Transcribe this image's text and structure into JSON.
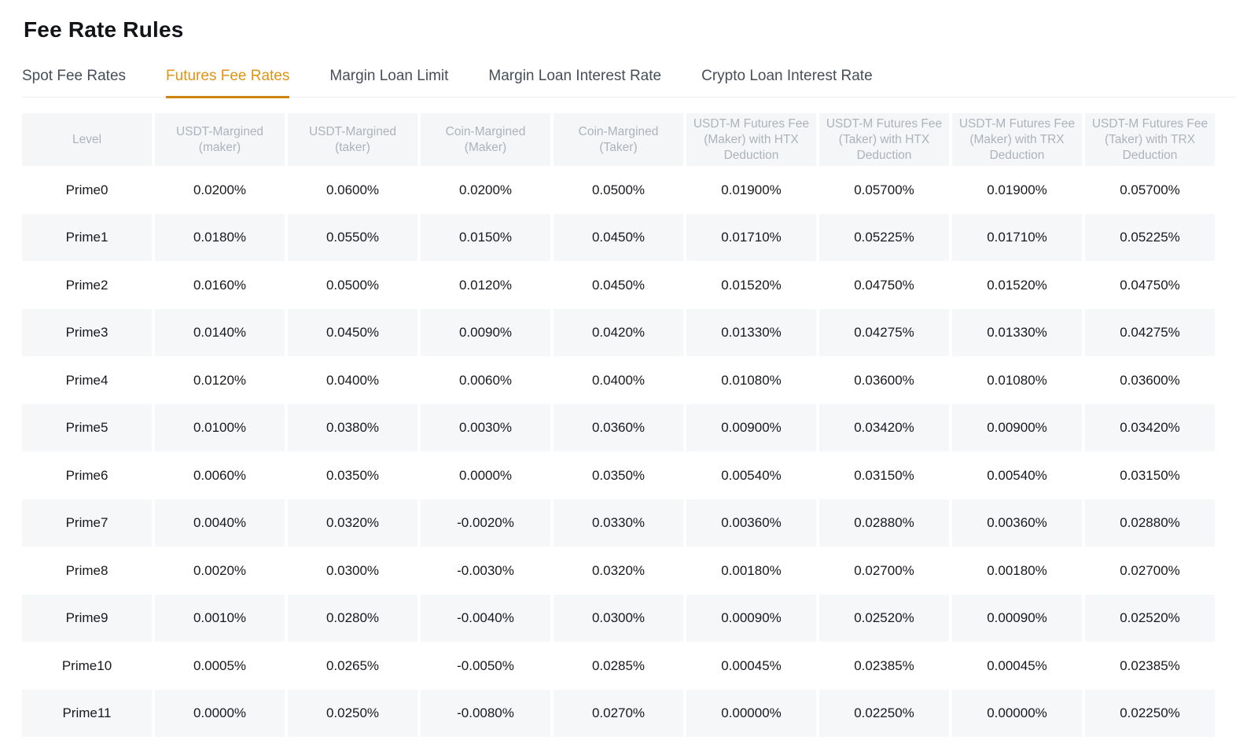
{
  "page": {
    "title": "Fee Rate Rules"
  },
  "colors": {
    "accent_text": "#dd9417",
    "accent_underline": "#d2830e",
    "header_bg": "#f5f6f8",
    "stripe_bg": "#f6f7f9"
  },
  "tabs": [
    {
      "label": "Spot Fee Rates",
      "active": false
    },
    {
      "label": "Futures Fee Rates",
      "active": true
    },
    {
      "label": "Margin Loan Limit",
      "active": false
    },
    {
      "label": "Margin Loan Interest Rate",
      "active": false
    },
    {
      "label": "Crypto Loan Interest Rate",
      "active": false
    }
  ],
  "table": {
    "columns": [
      "Level",
      "USDT-Margined (maker)",
      "USDT-Margined (taker)",
      "Coin-Margined (Maker)",
      "Coin-Margined (Taker)",
      "USDT-M Futures Fee (Maker) with HTX Deduction",
      "USDT-M Futures Fee (Taker) with HTX Deduction",
      "USDT-M Futures Fee (Maker) with TRX Deduction",
      "USDT-M Futures Fee (Taker) with TRX Deduction"
    ],
    "rows": [
      {
        "level": "Prime0",
        "values": [
          "0.0200%",
          "0.0600%",
          "0.0200%",
          "0.0500%",
          "0.01900%",
          "0.05700%",
          "0.01900%",
          "0.05700%"
        ]
      },
      {
        "level": "Prime1",
        "values": [
          "0.0180%",
          "0.0550%",
          "0.0150%",
          "0.0450%",
          "0.01710%",
          "0.05225%",
          "0.01710%",
          "0.05225%"
        ]
      },
      {
        "level": "Prime2",
        "values": [
          "0.0160%",
          "0.0500%",
          "0.0120%",
          "0.0450%",
          "0.01520%",
          "0.04750%",
          "0.01520%",
          "0.04750%"
        ]
      },
      {
        "level": "Prime3",
        "values": [
          "0.0140%",
          "0.0450%",
          "0.0090%",
          "0.0420%",
          "0.01330%",
          "0.04275%",
          "0.01330%",
          "0.04275%"
        ]
      },
      {
        "level": "Prime4",
        "values": [
          "0.0120%",
          "0.0400%",
          "0.0060%",
          "0.0400%",
          "0.01080%",
          "0.03600%",
          "0.01080%",
          "0.03600%"
        ]
      },
      {
        "level": "Prime5",
        "values": [
          "0.0100%",
          "0.0380%",
          "0.0030%",
          "0.0360%",
          "0.00900%",
          "0.03420%",
          "0.00900%",
          "0.03420%"
        ]
      },
      {
        "level": "Prime6",
        "values": [
          "0.0060%",
          "0.0350%",
          "0.0000%",
          "0.0350%",
          "0.00540%",
          "0.03150%",
          "0.00540%",
          "0.03150%"
        ]
      },
      {
        "level": "Prime7",
        "values": [
          "0.0040%",
          "0.0320%",
          "-0.0020%",
          "0.0330%",
          "0.00360%",
          "0.02880%",
          "0.00360%",
          "0.02880%"
        ]
      },
      {
        "level": "Prime8",
        "values": [
          "0.0020%",
          "0.0300%",
          "-0.0030%",
          "0.0320%",
          "0.00180%",
          "0.02700%",
          "0.00180%",
          "0.02700%"
        ]
      },
      {
        "level": "Prime9",
        "values": [
          "0.0010%",
          "0.0280%",
          "-0.0040%",
          "0.0300%",
          "0.00090%",
          "0.02520%",
          "0.00090%",
          "0.02520%"
        ]
      },
      {
        "level": "Prime10",
        "values": [
          "0.0005%",
          "0.0265%",
          "-0.0050%",
          "0.0285%",
          "0.00045%",
          "0.02385%",
          "0.00045%",
          "0.02385%"
        ]
      },
      {
        "level": "Prime11",
        "values": [
          "0.0000%",
          "0.0250%",
          "-0.0080%",
          "0.0270%",
          "0.00000%",
          "0.02250%",
          "0.00000%",
          "0.02250%"
        ]
      }
    ]
  }
}
